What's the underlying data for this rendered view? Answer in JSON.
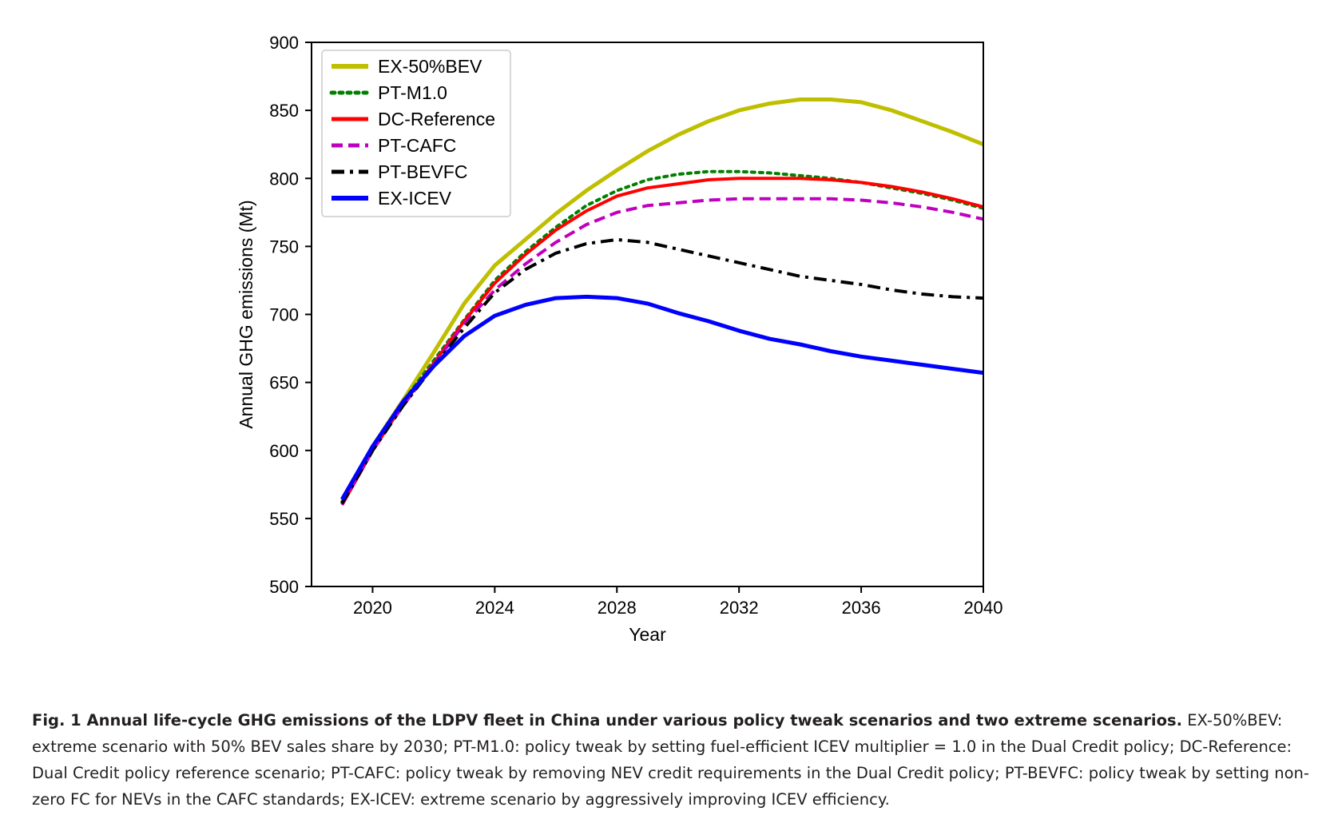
{
  "chart_data": {
    "type": "line",
    "title": "",
    "xlabel": "Year",
    "ylabel": "Annual GHG emissions (Mt)",
    "xlim": [
      2018,
      2040
    ],
    "ylim": [
      500,
      900
    ],
    "xticks": [
      2020,
      2024,
      2028,
      2032,
      2036,
      2040
    ],
    "yticks": [
      500,
      550,
      600,
      650,
      700,
      750,
      800,
      850,
      900
    ],
    "grid": false,
    "legend_position": "top-left",
    "x": [
      2019,
      2020,
      2021,
      2022,
      2023,
      2024,
      2025,
      2026,
      2027,
      2028,
      2029,
      2030,
      2031,
      2032,
      2033,
      2034,
      2035,
      2036,
      2037,
      2038,
      2039,
      2040
    ],
    "series": [
      {
        "name": "EX-50%BEV",
        "color": "#bfbf00",
        "style": "solid-thick",
        "values": [
          562,
          603,
          637,
          672,
          708,
          736,
          755,
          774,
          791,
          806,
          820,
          832,
          842,
          850,
          855,
          858,
          858,
          856,
          850,
          842,
          834,
          825
        ]
      },
      {
        "name": "PT-M1.0",
        "color": "#008000",
        "style": "dotted",
        "values": [
          562,
          602,
          636,
          666,
          696,
          725,
          746,
          764,
          780,
          791,
          799,
          803,
          805,
          805,
          804,
          802,
          800,
          797,
          793,
          789,
          784,
          778
        ]
      },
      {
        "name": "DC-Reference",
        "color": "#ff0000",
        "style": "solid",
        "values": [
          560,
          600,
          634,
          664,
          695,
          723,
          744,
          762,
          776,
          787,
          793,
          796,
          799,
          800,
          800,
          800,
          799,
          797,
          794,
          790,
          785,
          779
        ]
      },
      {
        "name": "PT-CAFC",
        "color": "#bf00bf",
        "style": "dashed",
        "values": [
          560,
          600,
          633,
          663,
          693,
          718,
          737,
          753,
          766,
          775,
          780,
          782,
          784,
          785,
          785,
          785,
          785,
          784,
          782,
          779,
          775,
          770
        ]
      },
      {
        "name": "PT-BEVFC",
        "color": "#000000",
        "style": "dashdot",
        "values": [
          561,
          600,
          633,
          662,
          690,
          716,
          733,
          745,
          752,
          755,
          753,
          748,
          743,
          738,
          733,
          728,
          725,
          722,
          718,
          715,
          713,
          712
        ]
      },
      {
        "name": "EX-ICEV",
        "color": "#0000ff",
        "style": "solid-thick",
        "values": [
          564,
          603,
          636,
          662,
          684,
          699,
          707,
          712,
          713,
          712,
          708,
          701,
          695,
          688,
          682,
          678,
          673,
          669,
          666,
          663,
          660,
          657
        ]
      }
    ]
  },
  "caption": {
    "title": "Fig. 1 Annual life-cycle GHG emissions of the LDPV fleet in China under various policy tweak scenarios and two extreme scenarios.",
    "body": " EX-50%BEV: extreme scenario with 50% BEV sales share by 2030; PT-M1.0: policy tweak by setting fuel-efficient ICEV multiplier = 1.0 in the Dual Credit policy; DC-Reference: Dual Credit policy reference scenario; PT-CAFC: policy tweak by removing NEV credit requirements in the Dual Credit policy; PT-BEVFC: policy tweak by setting non-zero FC for NEVs in the CAFC standards; EX-ICEV: extreme scenario by aggressively improving ICEV efficiency."
  }
}
